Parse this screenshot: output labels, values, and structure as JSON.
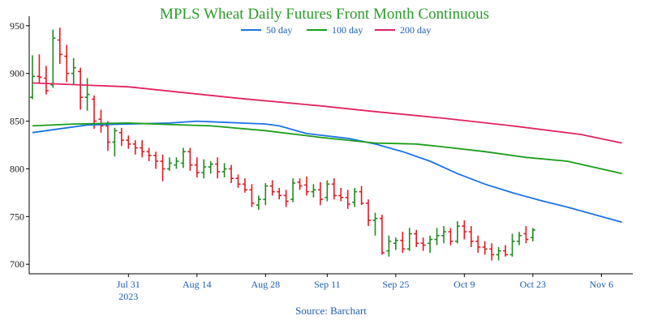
{
  "chart_data": {
    "type": "ohlc",
    "title": "MPLS Wheat Daily Futures Front Month Continuous",
    "source": "Source: Barchart",
    "ylim": [
      690,
      960
    ],
    "y_ticks": [
      700,
      750,
      800,
      850,
      900,
      950
    ],
    "x_ticks": [
      {
        "label": "Jul 31",
        "sub": "2023",
        "index": 14
      },
      {
        "label": "Aug 14",
        "sub": "",
        "index": 24
      },
      {
        "label": "Aug 28",
        "sub": "",
        "index": 34
      },
      {
        "label": "Sep 11",
        "sub": "",
        "index": 43
      },
      {
        "label": "Sep 25",
        "sub": "",
        "index": 53
      },
      {
        "label": "Oct 9",
        "sub": "",
        "index": 63
      },
      {
        "label": "Oct 23",
        "sub": "",
        "index": 73
      },
      {
        "label": "Nov 6",
        "sub": "",
        "index": 83
      }
    ],
    "colors": {
      "up": "#1f8a1f",
      "down": "#e01b24",
      "title": "#2a9d2a",
      "axis_text": "#1a5fb4"
    },
    "series": [
      {
        "name": "50 day",
        "color": "#1a73e8",
        "values": [
          [
            0,
            838
          ],
          [
            8,
            846
          ],
          [
            14,
            847
          ],
          [
            20,
            848
          ],
          [
            24,
            850
          ],
          [
            34,
            847
          ],
          [
            36,
            845
          ],
          [
            40,
            837
          ],
          [
            46,
            832
          ],
          [
            50,
            826
          ],
          [
            54,
            818
          ],
          [
            58,
            808
          ],
          [
            62,
            795
          ],
          [
            66,
            784
          ],
          [
            70,
            775
          ],
          [
            74,
            767
          ],
          [
            78,
            760
          ],
          [
            82,
            752
          ],
          [
            86,
            744
          ]
        ]
      },
      {
        "name": "100 day",
        "color": "#1a9e1a",
        "values": [
          [
            0,
            845
          ],
          [
            6,
            847
          ],
          [
            14,
            848
          ],
          [
            18,
            847
          ],
          [
            26,
            845
          ],
          [
            34,
            840
          ],
          [
            42,
            833
          ],
          [
            50,
            827
          ],
          [
            56,
            826
          ],
          [
            60,
            823
          ],
          [
            66,
            818
          ],
          [
            72,
            812
          ],
          [
            78,
            808
          ],
          [
            86,
            795
          ]
        ]
      },
      {
        "name": "200 day",
        "color": "#e0245e",
        "values": [
          [
            0,
            890
          ],
          [
            14,
            886
          ],
          [
            30,
            874
          ],
          [
            42,
            866
          ],
          [
            50,
            860
          ],
          [
            60,
            853
          ],
          [
            70,
            845
          ],
          [
            80,
            836
          ],
          [
            86,
            827
          ]
        ]
      }
    ],
    "bars": [
      [
        0,
        875,
        919,
        873,
        897
      ],
      [
        1,
        897,
        920,
        889,
        896
      ],
      [
        2,
        895,
        908,
        878,
        882
      ],
      [
        3,
        888,
        946,
        885,
        937
      ],
      [
        4,
        935,
        948,
        910,
        920
      ],
      [
        5,
        918,
        930,
        891,
        900
      ],
      [
        6,
        900,
        916,
        888,
        906
      ],
      [
        7,
        902,
        906,
        862,
        875
      ],
      [
        8,
        875,
        895,
        861,
        878
      ],
      [
        9,
        873,
        877,
        842,
        850
      ],
      [
        10,
        852,
        862,
        838,
        845
      ],
      [
        11,
        845,
        850,
        819,
        828
      ],
      [
        12,
        828,
        843,
        813,
        840
      ],
      [
        13,
        838,
        843,
        824,
        830
      ],
      [
        14,
        830,
        835,
        821,
        826
      ],
      [
        15,
        826,
        830,
        815,
        822
      ],
      [
        16,
        822,
        830,
        812,
        818
      ],
      [
        17,
        818,
        822,
        808,
        814
      ],
      [
        18,
        814,
        818,
        800,
        808
      ],
      [
        19,
        808,
        815,
        787,
        800
      ],
      [
        20,
        800,
        812,
        798,
        806
      ],
      [
        21,
        804,
        812,
        800,
        808
      ],
      [
        22,
        806,
        822,
        801,
        818
      ],
      [
        23,
        818,
        822,
        798,
        804
      ],
      [
        24,
        804,
        812,
        791,
        796
      ],
      [
        25,
        796,
        810,
        790,
        802
      ],
      [
        26,
        802,
        808,
        795,
        805
      ],
      [
        27,
        805,
        812,
        790,
        797
      ],
      [
        28,
        797,
        806,
        791,
        800
      ],
      [
        29,
        800,
        804,
        785,
        790
      ],
      [
        30,
        790,
        794,
        780,
        784
      ],
      [
        31,
        784,
        790,
        775,
        778
      ],
      [
        32,
        778,
        784,
        760,
        764
      ],
      [
        33,
        762,
        772,
        757,
        768
      ],
      [
        34,
        768,
        785,
        762,
        782
      ],
      [
        35,
        782,
        788,
        772,
        776
      ],
      [
        36,
        776,
        780,
        768,
        772
      ],
      [
        37,
        772,
        778,
        760,
        766
      ],
      [
        38,
        768,
        790,
        765,
        785
      ],
      [
        39,
        786,
        790,
        778,
        782
      ],
      [
        40,
        783,
        792,
        772,
        776
      ],
      [
        41,
        776,
        784,
        770,
        778
      ],
      [
        42,
        778,
        786,
        762,
        768
      ],
      [
        43,
        770,
        788,
        766,
        784
      ],
      [
        44,
        784,
        790,
        768,
        772
      ],
      [
        45,
        772,
        780,
        766,
        770
      ],
      [
        46,
        770,
        778,
        758,
        763
      ],
      [
        47,
        765,
        780,
        760,
        776
      ],
      [
        48,
        776,
        782,
        762,
        764
      ],
      [
        49,
        764,
        768,
        740,
        746
      ],
      [
        50,
        746,
        754,
        730,
        748
      ],
      [
        51,
        748,
        752,
        710,
        712
      ],
      [
        52,
        714,
        730,
        708,
        724
      ],
      [
        53,
        722,
        728,
        715,
        725
      ],
      [
        54,
        725,
        734,
        712,
        716
      ],
      [
        55,
        716,
        738,
        714,
        732
      ],
      [
        56,
        732,
        736,
        718,
        722
      ],
      [
        57,
        722,
        728,
        714,
        720
      ],
      [
        58,
        722,
        730,
        712,
        726
      ],
      [
        59,
        726,
        738,
        720,
        730
      ],
      [
        60,
        730,
        740,
        722,
        734
      ],
      [
        61,
        734,
        738,
        720,
        724
      ],
      [
        62,
        724,
        745,
        722,
        740
      ],
      [
        63,
        740,
        746,
        726,
        734
      ],
      [
        64,
        734,
        740,
        718,
        724
      ],
      [
        65,
        724,
        730,
        712,
        718
      ],
      [
        66,
        718,
        724,
        710,
        716
      ],
      [
        67,
        716,
        722,
        704,
        710
      ],
      [
        68,
        710,
        718,
        704,
        714
      ],
      [
        69,
        714,
        720,
        708,
        710
      ],
      [
        70,
        710,
        732,
        708,
        724
      ],
      [
        71,
        724,
        734,
        720,
        730
      ],
      [
        72,
        732,
        740,
        722,
        726
      ],
      [
        73,
        728,
        738,
        724,
        736
      ]
    ]
  }
}
